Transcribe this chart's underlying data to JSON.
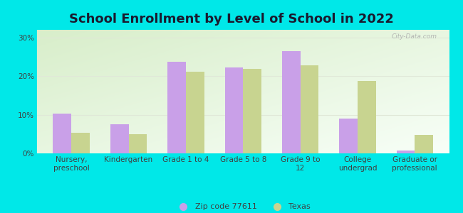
{
  "title": "School Enrollment by Level of School in 2022",
  "categories": [
    "Nursery,\npreschool",
    "Kindergarten",
    "Grade 1 to 4",
    "Grade 5 to 8",
    "Grade 9 to\n12",
    "College\nundergrad",
    "Graduate or\nprofessional"
  ],
  "zip_values": [
    10.3,
    7.5,
    23.7,
    22.2,
    26.4,
    9.1,
    0.8
  ],
  "texas_values": [
    5.4,
    4.9,
    21.1,
    21.9,
    22.8,
    18.7,
    4.8
  ],
  "zip_color": "#c9a0e8",
  "texas_color": "#c8d490",
  "background_color": "#00e8e8",
  "plot_bg_top_left": "#c8e8c0",
  "plot_bg_bottom_right": "#f5fff5",
  "title_fontsize": 13,
  "bar_width": 0.32,
  "ylim": [
    0,
    32
  ],
  "yticks": [
    0,
    10,
    20,
    30
  ],
  "ytick_labels": [
    "0%",
    "10%",
    "20%",
    "30%"
  ],
  "legend_zip_label": "Zip code 77611",
  "legend_texas_label": "Texas",
  "watermark": "City-Data.com",
  "grid_color": "#e0e8d8",
  "tick_label_fontsize": 7.5,
  "title_color": "#1a1a2e"
}
